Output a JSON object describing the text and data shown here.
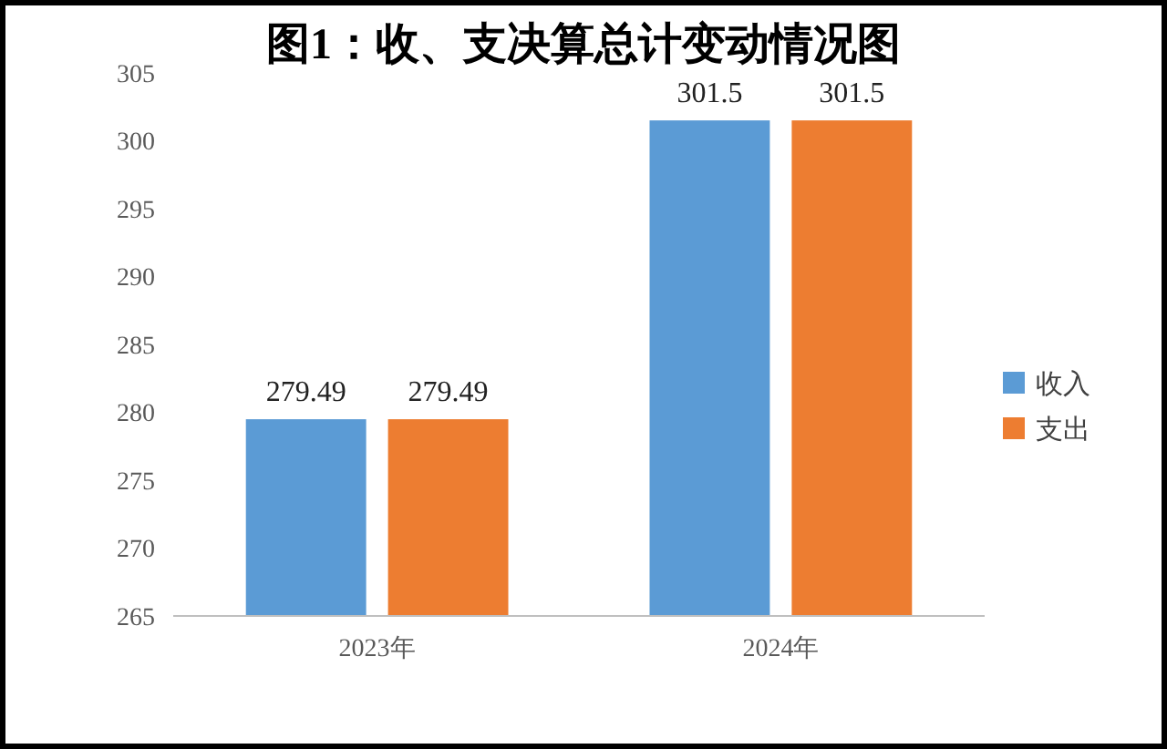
{
  "chart_data": {
    "type": "bar",
    "title": "图1：收、支决算总计变动情况图",
    "categories": [
      "2023年",
      "2024年"
    ],
    "series": [
      {
        "name": "收入",
        "color": "#5b9bd5",
        "values": [
          279.49,
          301.5
        ]
      },
      {
        "name": "支出",
        "color": "#ed7d31",
        "values": [
          279.49,
          301.5
        ]
      }
    ],
    "ylim": [
      265,
      305
    ],
    "yticks": [
      265,
      270,
      275,
      280,
      285,
      290,
      295,
      300,
      305
    ],
    "data_labels": true,
    "legend": "right",
    "grid": false
  }
}
